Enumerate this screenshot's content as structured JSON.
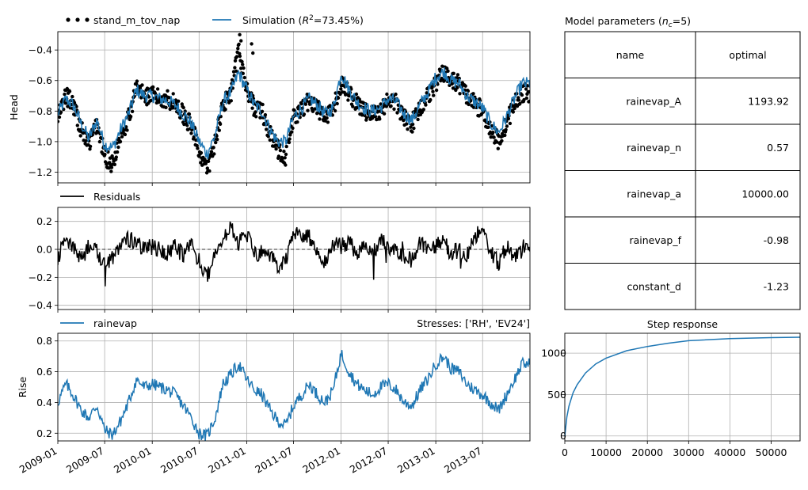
{
  "head_panel": {
    "ylabel": "Head",
    "legend_observed": "stand_m_tov_nap",
    "legend_simulation_prefix": "Simulation (",
    "legend_simulation_r2": "R",
    "legend_simulation_sup": "2",
    "legend_simulation_suffix": "=73.45%)",
    "colors": {
      "observed": "#000000",
      "simulation": "#1f77b4"
    }
  },
  "residuals_panel": {
    "legend": "Residuals",
    "color": "#000000"
  },
  "contrib_panel": {
    "ylabel": "Rise",
    "legend": "rainevap",
    "title": "Stresses: ['RH', 'EV24']",
    "color": "#1f77b4"
  },
  "params_panel": {
    "title_prefix": "Model parameters (",
    "title_n": "n",
    "title_sub": "c",
    "title_suffix": "=5)",
    "columns": [
      "name",
      "optimal"
    ],
    "rows": [
      [
        "rainevap_A",
        "1193.92"
      ],
      [
        "rainevap_n",
        "0.57"
      ],
      [
        "rainevap_a",
        "10000.00"
      ],
      [
        "rainevap_f",
        "-0.98"
      ],
      [
        "constant_d",
        "-1.23"
      ]
    ]
  },
  "step_panel": {
    "title": "Step response",
    "color": "#1f77b4"
  },
  "chart_data": [
    {
      "type": "line",
      "panel": "head",
      "ylabel": "Head",
      "ylim": [
        -1.27,
        -0.28
      ],
      "yticks": [
        -1.2,
        -1.0,
        -0.8,
        -0.6,
        -0.4
      ],
      "ytick_labels": [
        "−1.2",
        "−1.0",
        "−0.8",
        "−0.6",
        "−0.4"
      ],
      "xlim": [
        "2009-01-01",
        "2013-12-31"
      ],
      "grid": true,
      "series": [
        {
          "name": "stand_m_tov_nap",
          "style": "points",
          "x": [
            "2009-01",
            "2009-02",
            "2009-03",
            "2009-04",
            "2009-05",
            "2009-06",
            "2009-07",
            "2009-08",
            "2009-09",
            "2009-10",
            "2009-11",
            "2009-12",
            "2010-01",
            "2010-02",
            "2010-03",
            "2010-04",
            "2010-05",
            "2010-06",
            "2010-07",
            "2010-08",
            "2010-09",
            "2010-10",
            "2010-11",
            "2010-12",
            "2011-01",
            "2011-02",
            "2011-03",
            "2011-04",
            "2011-05",
            "2011-06",
            "2011-07",
            "2011-08",
            "2011-09",
            "2011-10",
            "2011-11",
            "2011-12",
            "2012-01",
            "2012-02",
            "2012-03",
            "2012-04",
            "2012-05",
            "2012-06",
            "2012-07",
            "2012-08",
            "2012-09",
            "2012-10",
            "2012-11",
            "2012-12",
            "2013-01",
            "2013-02",
            "2013-03",
            "2013-04",
            "2013-05",
            "2013-06",
            "2013-07",
            "2013-08",
            "2013-09",
            "2013-10",
            "2013-11",
            "2013-12"
          ],
          "y": [
            -0.85,
            -0.7,
            -0.75,
            -0.92,
            -1.02,
            -0.88,
            -1.1,
            -1.15,
            -0.95,
            -0.85,
            -0.64,
            -0.7,
            -0.7,
            -0.72,
            -0.72,
            -0.75,
            -0.82,
            -0.9,
            -1.05,
            -1.2,
            -1.0,
            -0.75,
            -0.7,
            -0.4,
            -0.66,
            -0.78,
            -0.8,
            -0.95,
            -1.05,
            -1.1,
            -0.85,
            -0.8,
            -0.72,
            -0.78,
            -0.85,
            -0.8,
            -0.62,
            -0.68,
            -0.75,
            -0.8,
            -0.82,
            -0.8,
            -0.72,
            -0.75,
            -0.85,
            -0.88,
            -0.78,
            -0.7,
            -0.62,
            -0.55,
            -0.6,
            -0.62,
            -0.7,
            -0.75,
            -0.8,
            -0.92,
            -1.0,
            -0.88,
            -0.75,
            -0.68
          ]
        },
        {
          "name": "Simulation (R2=73.45%)",
          "style": "line",
          "x": [
            "2009-01",
            "2009-02",
            "2009-03",
            "2009-04",
            "2009-05",
            "2009-06",
            "2009-07",
            "2009-08",
            "2009-09",
            "2009-10",
            "2009-11",
            "2009-12",
            "2010-01",
            "2010-02",
            "2010-03",
            "2010-04",
            "2010-05",
            "2010-06",
            "2010-07",
            "2010-08",
            "2010-09",
            "2010-10",
            "2010-11",
            "2010-12",
            "2011-01",
            "2011-02",
            "2011-03",
            "2011-04",
            "2011-05",
            "2011-06",
            "2011-07",
            "2011-08",
            "2011-09",
            "2011-10",
            "2011-11",
            "2011-12",
            "2012-01",
            "2012-02",
            "2012-03",
            "2012-04",
            "2012-05",
            "2012-06",
            "2012-07",
            "2012-08",
            "2012-09",
            "2012-10",
            "2012-11",
            "2012-12",
            "2013-01",
            "2013-02",
            "2013-03",
            "2013-04",
            "2013-05",
            "2013-06",
            "2013-07",
            "2013-08",
            "2013-09",
            "2013-10",
            "2013-11",
            "2013-12"
          ],
          "y": [
            -0.82,
            -0.72,
            -0.76,
            -0.88,
            -0.98,
            -0.86,
            -1.02,
            -1.04,
            -0.92,
            -0.82,
            -0.66,
            -0.7,
            -0.7,
            -0.72,
            -0.73,
            -0.76,
            -0.82,
            -0.88,
            -1.0,
            -1.08,
            -0.96,
            -0.74,
            -0.68,
            -0.55,
            -0.66,
            -0.76,
            -0.8,
            -0.92,
            -1.0,
            -1.0,
            -0.84,
            -0.78,
            -0.72,
            -0.76,
            -0.82,
            -0.78,
            -0.55,
            -0.66,
            -0.74,
            -0.78,
            -0.8,
            -0.78,
            -0.72,
            -0.74,
            -0.82,
            -0.86,
            -0.76,
            -0.68,
            -0.58,
            -0.54,
            -0.6,
            -0.62,
            -0.7,
            -0.74,
            -0.78,
            -0.88,
            -0.94,
            -0.84,
            -0.72,
            -0.62
          ]
        }
      ]
    },
    {
      "type": "line",
      "panel": "residuals",
      "ylim": [
        -0.43,
        0.3
      ],
      "yticks": [
        -0.4,
        -0.2,
        0.0,
        0.2
      ],
      "ytick_labels": [
        "−0.4",
        "−0.2",
        "0.0",
        "0.2"
      ],
      "xlim": [
        "2009-01-01",
        "2013-12-31"
      ],
      "grid": true,
      "series": [
        {
          "name": "Residuals",
          "x": [
            "2009-01",
            "2009-02",
            "2009-03",
            "2009-04",
            "2009-05",
            "2009-06",
            "2009-07",
            "2009-08",
            "2009-09",
            "2009-10",
            "2009-11",
            "2009-12",
            "2010-01",
            "2010-02",
            "2010-03",
            "2010-04",
            "2010-05",
            "2010-06",
            "2010-07",
            "2010-08",
            "2010-09",
            "2010-10",
            "2010-11",
            "2010-12",
            "2011-01",
            "2011-02",
            "2011-03",
            "2011-04",
            "2011-05",
            "2011-06",
            "2011-07",
            "2011-08",
            "2011-09",
            "2011-10",
            "2011-11",
            "2011-12",
            "2012-01",
            "2012-02",
            "2012-03",
            "2012-04",
            "2012-05",
            "2012-06",
            "2012-07",
            "2012-08",
            "2012-09",
            "2012-10",
            "2012-11",
            "2012-12",
            "2013-01",
            "2013-02",
            "2013-03",
            "2013-04",
            "2013-05",
            "2013-06",
            "2013-07",
            "2013-08",
            "2013-09",
            "2013-10",
            "2013-11",
            "2013-12"
          ],
          "y": [
            -0.05,
            0.05,
            0.03,
            -0.08,
            0.02,
            -0.02,
            -0.1,
            -0.05,
            0.05,
            0.08,
            0.04,
            0.0,
            0.02,
            0.0,
            -0.03,
            0.02,
            -0.05,
            0.03,
            -0.08,
            -0.2,
            -0.05,
            0.08,
            0.15,
            0.05,
            0.1,
            -0.03,
            -0.02,
            -0.05,
            -0.12,
            -0.08,
            0.1,
            0.12,
            0.08,
            -0.05,
            -0.1,
            0.05,
            0.02,
            0.05,
            -0.03,
            0.02,
            -0.05,
            0.08,
            0.03,
            -0.02,
            -0.05,
            -0.08,
            0.05,
            0.02,
            0.03,
            0.05,
            -0.03,
            0.0,
            -0.05,
            0.1,
            0.12,
            -0.02,
            -0.1,
            0.02,
            -0.05,
            0.0
          ]
        }
      ]
    },
    {
      "type": "line",
      "panel": "contribution",
      "ylabel": "Rise",
      "ylim": [
        0.15,
        0.85
      ],
      "yticks": [
        0.2,
        0.4,
        0.6,
        0.8
      ],
      "ytick_labels": [
        "0.2",
        "0.4",
        "0.6",
        "0.8"
      ],
      "xlim": [
        "2009-01-01",
        "2013-12-31"
      ],
      "xticks": [
        "2009-01",
        "2009-07",
        "2010-01",
        "2010-07",
        "2011-01",
        "2011-07",
        "2012-01",
        "2012-07",
        "2013-01",
        "2013-07"
      ],
      "xtick_labels": [
        "2009-01",
        "2009-07",
        "2010-01",
        "2010-07",
        "2011-01",
        "2011-07",
        "2012-01",
        "2012-07",
        "2013-01",
        "2013-07"
      ],
      "grid": true,
      "series": [
        {
          "name": "rainevap",
          "x": [
            "2009-01",
            "2009-02",
            "2009-03",
            "2009-04",
            "2009-05",
            "2009-06",
            "2009-07",
            "2009-08",
            "2009-09",
            "2009-10",
            "2009-11",
            "2009-12",
            "2010-01",
            "2010-02",
            "2010-03",
            "2010-04",
            "2010-05",
            "2010-06",
            "2010-07",
            "2010-08",
            "2010-09",
            "2010-10",
            "2010-11",
            "2010-12",
            "2011-01",
            "2011-02",
            "2011-03",
            "2011-04",
            "2011-05",
            "2011-06",
            "2011-07",
            "2011-08",
            "2011-09",
            "2011-10",
            "2011-11",
            "2011-12",
            "2012-01",
            "2012-02",
            "2012-03",
            "2012-04",
            "2012-05",
            "2012-06",
            "2012-07",
            "2012-08",
            "2012-09",
            "2012-10",
            "2012-11",
            "2012-12",
            "2013-01",
            "2013-02",
            "2013-03",
            "2013-04",
            "2013-05",
            "2013-06",
            "2013-07",
            "2013-08",
            "2013-09",
            "2013-10",
            "2013-11",
            "2013-12"
          ],
          "y": [
            0.4,
            0.52,
            0.45,
            0.35,
            0.3,
            0.38,
            0.22,
            0.19,
            0.28,
            0.4,
            0.55,
            0.5,
            0.52,
            0.5,
            0.48,
            0.45,
            0.38,
            0.3,
            0.2,
            0.18,
            0.3,
            0.52,
            0.58,
            0.65,
            0.55,
            0.48,
            0.45,
            0.35,
            0.28,
            0.25,
            0.38,
            0.45,
            0.52,
            0.45,
            0.4,
            0.48,
            0.72,
            0.6,
            0.52,
            0.48,
            0.45,
            0.5,
            0.52,
            0.48,
            0.4,
            0.38,
            0.48,
            0.55,
            0.65,
            0.7,
            0.62,
            0.6,
            0.52,
            0.48,
            0.45,
            0.4,
            0.35,
            0.45,
            0.55,
            0.65
          ]
        }
      ]
    },
    {
      "type": "line",
      "panel": "step_response",
      "title": "Step response",
      "xlim": [
        0,
        57000
      ],
      "ylim": [
        -60,
        1240
      ],
      "xticks": [
        0,
        10000,
        20000,
        30000,
        40000,
        50000
      ],
      "xtick_labels": [
        "0",
        "10000",
        "20000",
        "30000",
        "40000",
        "50000"
      ],
      "yticks": [
        0,
        500,
        1000
      ],
      "ytick_labels": [
        "0",
        "500",
        "1000"
      ],
      "grid": true,
      "series": [
        {
          "name": "rainevap",
          "A": 1193.92,
          "n": 0.57,
          "a": 10000.0,
          "x": [
            0,
            500,
            1000,
            2000,
            3000,
            5000,
            7500,
            10000,
            15000,
            20000,
            25000,
            30000,
            40000,
            50000,
            57000
          ],
          "y": [
            0,
            230,
            360,
            520,
            620,
            760,
            870,
            940,
            1030,
            1080,
            1120,
            1150,
            1175,
            1187,
            1192
          ]
        }
      ]
    }
  ]
}
